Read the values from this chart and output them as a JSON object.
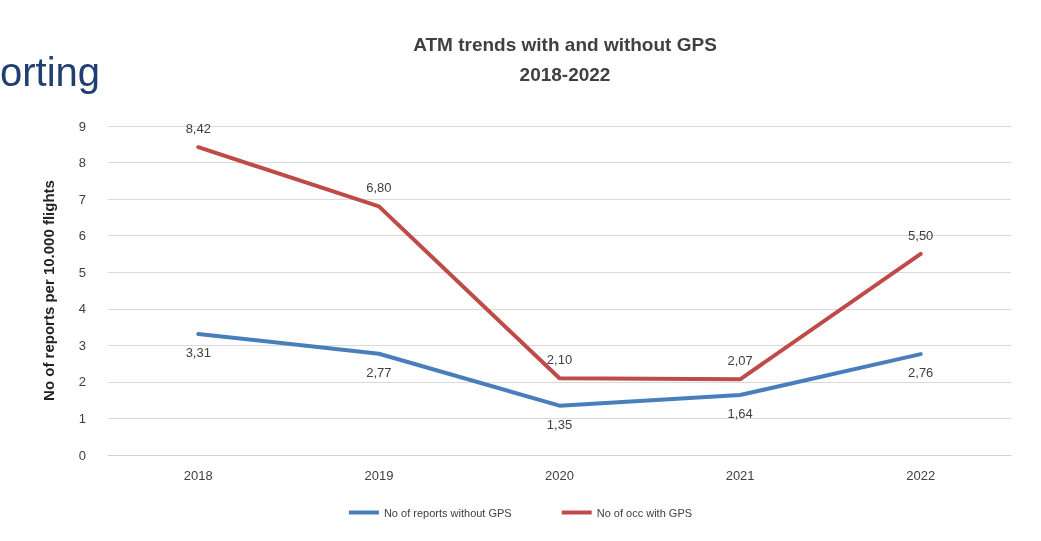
{
  "chart_data": {
    "type": "line",
    "title": "ATM trends with and without GPS",
    "subtitle": "2018-2022",
    "ylabel": "No of reports per 10.000 flights",
    "annotations": [
      "orting"
    ],
    "categories": [
      "2018",
      "2019",
      "2020",
      "2021",
      "2022"
    ],
    "series": [
      {
        "name": "No of reports without GPS",
        "color": "#4a7ebb",
        "values": [
          3.31,
          2.77,
          1.35,
          1.64,
          2.76
        ],
        "value_labels": [
          "3,31",
          "2,77",
          "1,35",
          "1,64",
          "2,76"
        ]
      },
      {
        "name": "No of occ with GPS",
        "color": "#be4b48",
        "values": [
          8.42,
          6.8,
          2.1,
          2.07,
          5.5
        ],
        "value_labels": [
          "8,42",
          "6,80",
          "2,10",
          "2,07",
          "5,50"
        ]
      }
    ],
    "ylim": [
      0,
      9
    ],
    "yticks": [
      0,
      1,
      2,
      3,
      4,
      5,
      6,
      7,
      8,
      9
    ],
    "grid": "y",
    "legend": "bottom",
    "marker": "none",
    "line_style": "solid"
  }
}
